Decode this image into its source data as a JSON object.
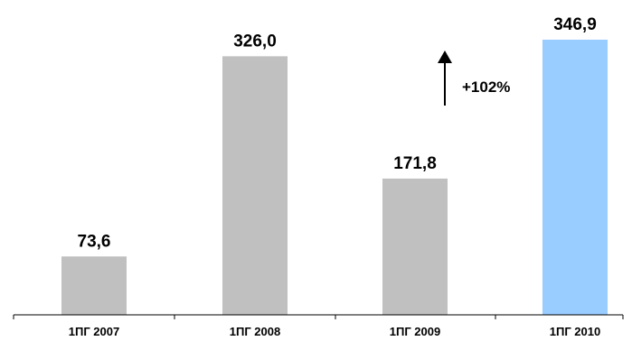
{
  "chart_data": {
    "type": "bar",
    "categories": [
      "1ПГ 2007",
      "1ПГ 2008",
      "1ПГ 2009",
      "1ПГ 2010"
    ],
    "values": [
      73.6,
      326.0,
      171.8,
      346.9
    ],
    "value_labels": [
      "73,6",
      "326,0",
      "171,8",
      "346,9"
    ],
    "colors": [
      "#c0c0c0",
      "#c0c0c0",
      "#c0c0c0",
      "#99ccff"
    ],
    "annotation": {
      "text": "+102%",
      "arrow": "up",
      "between": [
        "1ПГ 2009",
        "1ПГ 2010"
      ]
    },
    "ylim": [
      0,
      346.9
    ],
    "grid": false,
    "legend": false
  }
}
